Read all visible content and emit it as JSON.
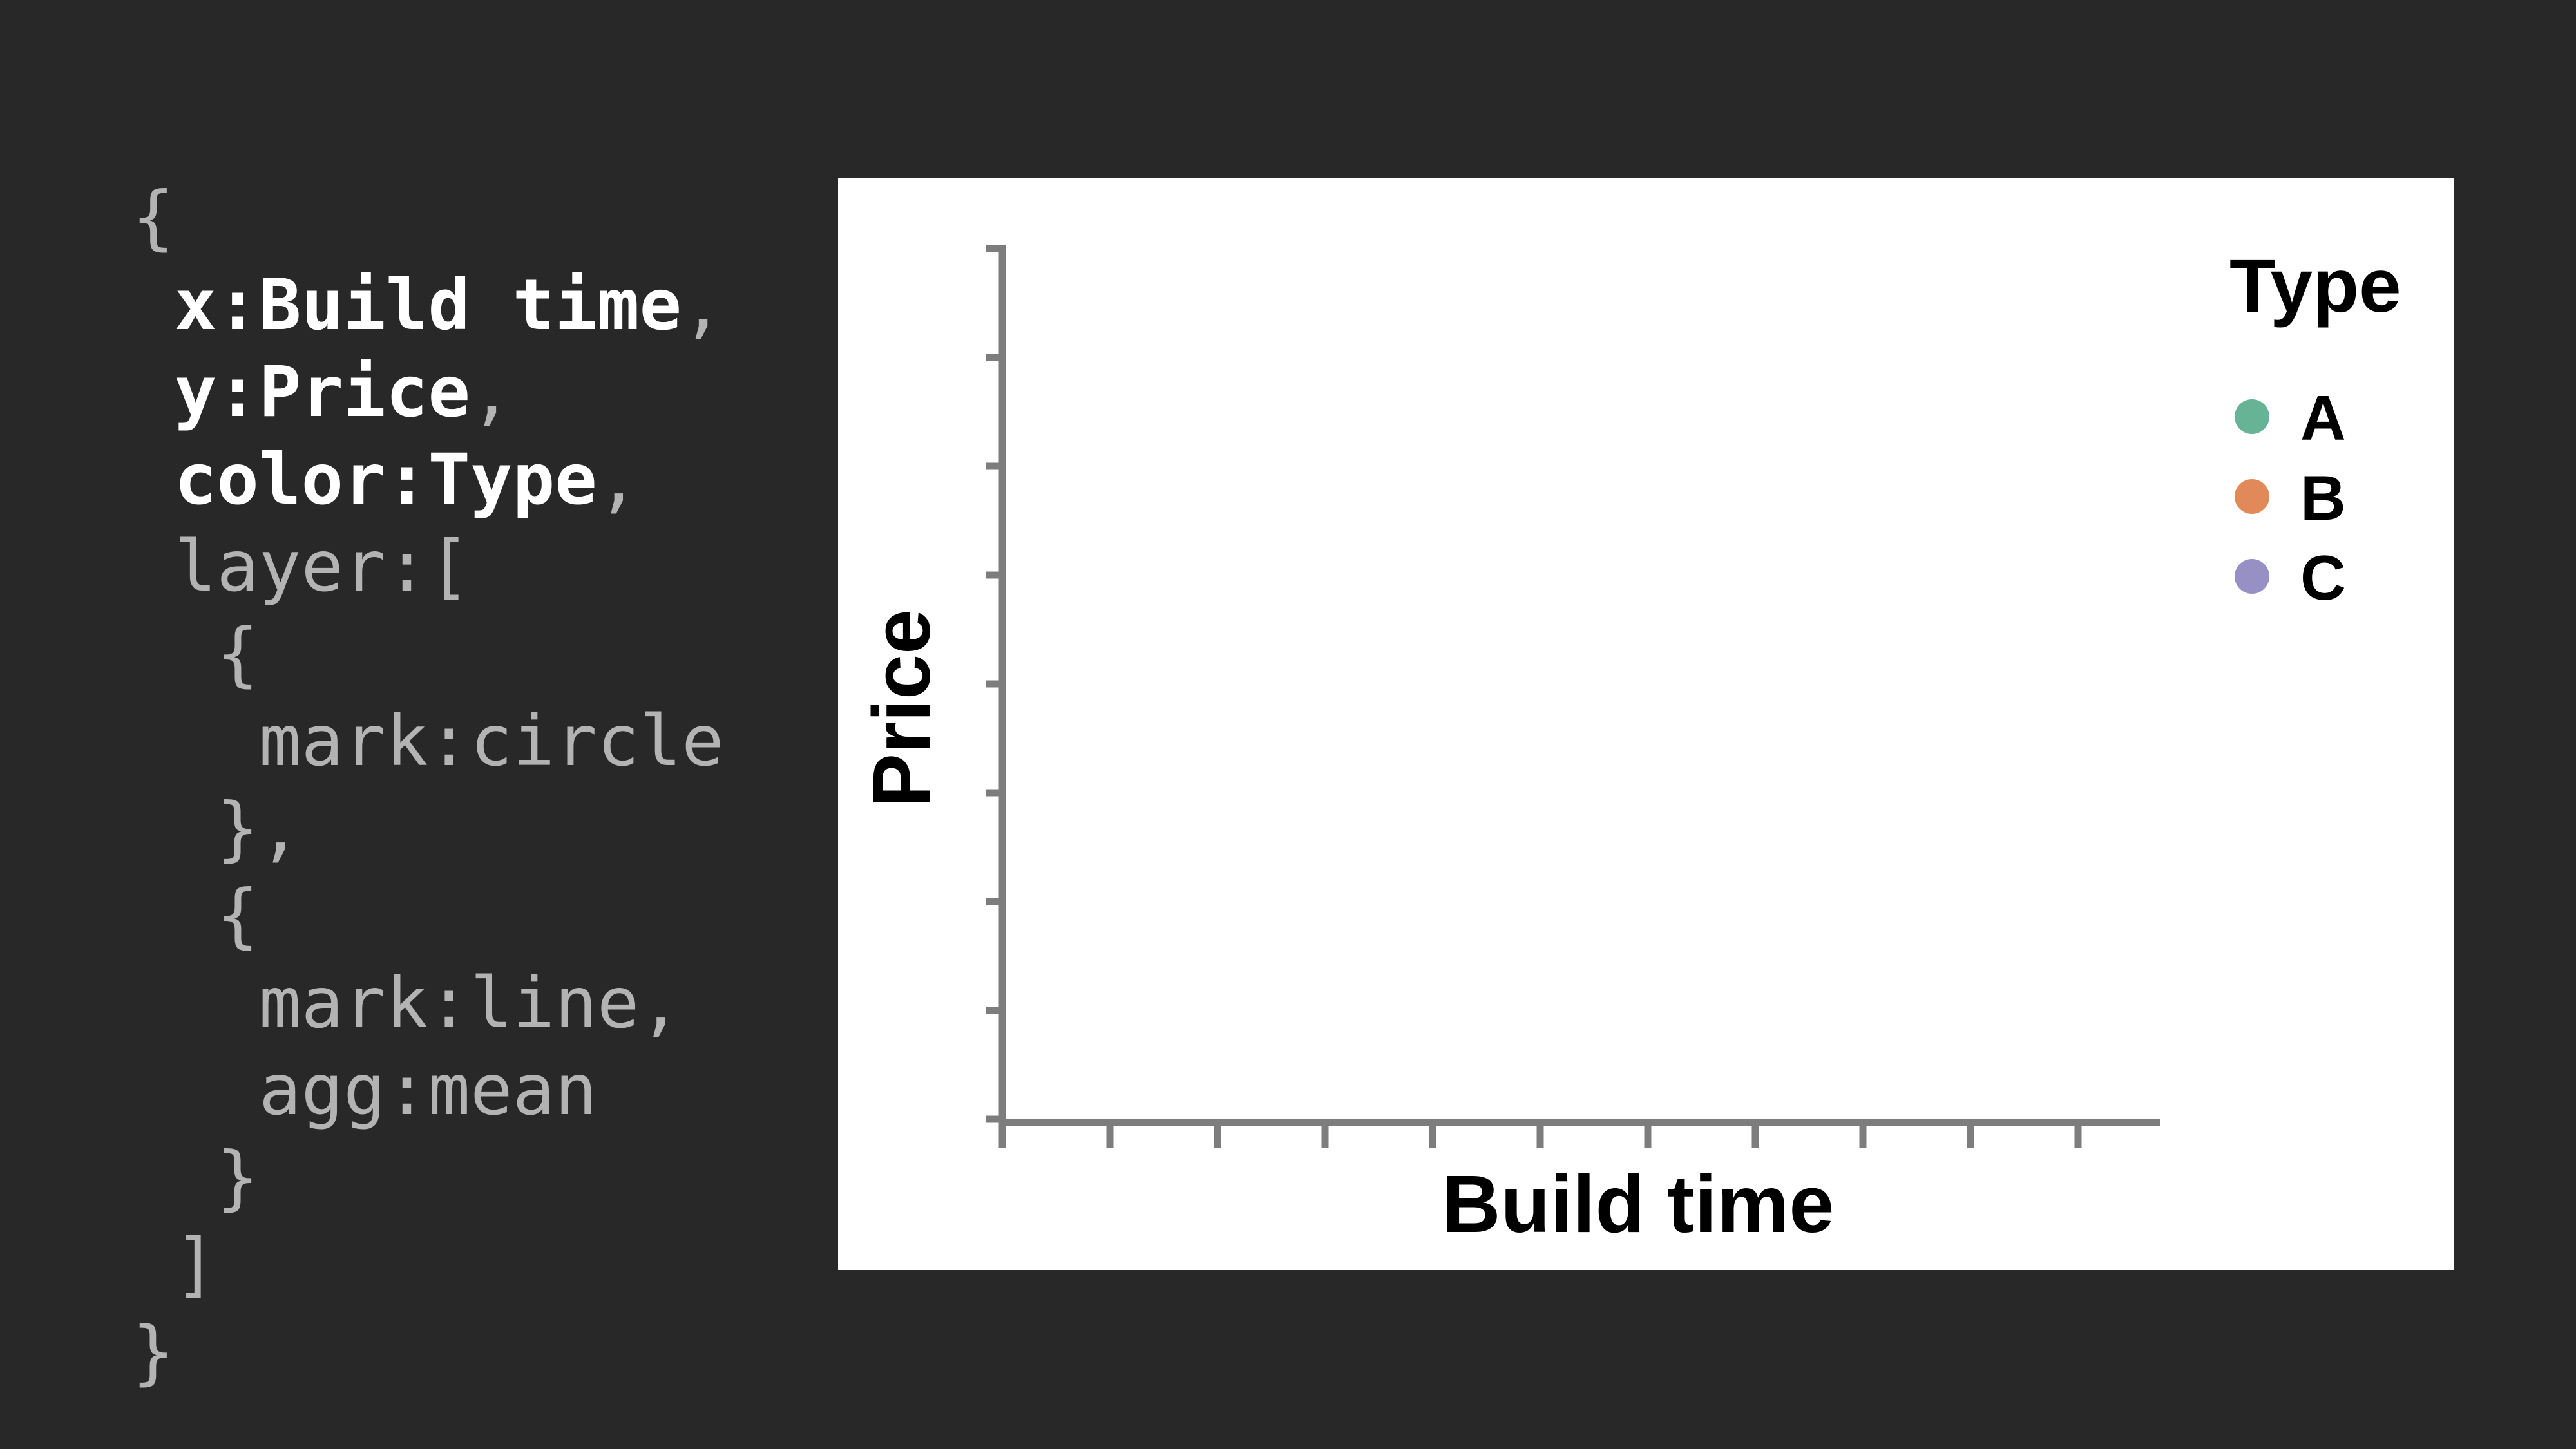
{
  "code": {
    "lines": [
      {
        "indent": "",
        "key": "{",
        "sep": "",
        "val": "",
        "trail": "",
        "highlight": false
      },
      {
        "indent": " ",
        "key": "x",
        "sep": ":",
        "val": "Build time",
        "trail": ",",
        "highlight": true
      },
      {
        "indent": " ",
        "key": "y",
        "sep": ":",
        "val": "Price",
        "trail": ",",
        "highlight": true
      },
      {
        "indent": " ",
        "key": "color",
        "sep": ":",
        "val": "Type",
        "trail": ",",
        "highlight": true
      },
      {
        "indent": " ",
        "key": "layer",
        "sep": ":",
        "val": "[",
        "trail": "",
        "highlight": false
      },
      {
        "indent": "  ",
        "key": "{",
        "sep": "",
        "val": "",
        "trail": "",
        "highlight": false
      },
      {
        "indent": "   ",
        "key": "mark",
        "sep": ":",
        "val": "circle",
        "trail": "",
        "highlight": false
      },
      {
        "indent": "  ",
        "key": "},",
        "sep": "",
        "val": "",
        "trail": "",
        "highlight": false
      },
      {
        "indent": "  ",
        "key": "{",
        "sep": "",
        "val": "",
        "trail": "",
        "highlight": false
      },
      {
        "indent": "   ",
        "key": "mark",
        "sep": ":",
        "val": "line",
        "trail": ",",
        "highlight": false
      },
      {
        "indent": "   ",
        "key": "agg",
        "sep": ":",
        "val": "mean",
        "trail": "",
        "highlight": false
      },
      {
        "indent": "  ",
        "key": "}",
        "sep": "",
        "val": "",
        "trail": "",
        "highlight": false
      },
      {
        "indent": " ",
        "key": "]",
        "sep": "",
        "val": "",
        "trail": "",
        "highlight": false
      },
      {
        "indent": "",
        "key": "}",
        "sep": "",
        "val": "",
        "trail": "",
        "highlight": false
      }
    ]
  },
  "chart_data": {
    "type": "scatter",
    "xlabel": "Build time",
    "ylabel": "Price",
    "x_tick_count": 11,
    "y_tick_count": 9,
    "series": [],
    "legend": {
      "title": "Type",
      "placement": "top-right",
      "items": [
        {
          "label": "A",
          "color": "#66b395"
        },
        {
          "label": "B",
          "color": "#e2895a"
        },
        {
          "label": "C",
          "color": "#9790c4"
        }
      ]
    },
    "axis_color": "#7d7d7d",
    "grid": false
  }
}
